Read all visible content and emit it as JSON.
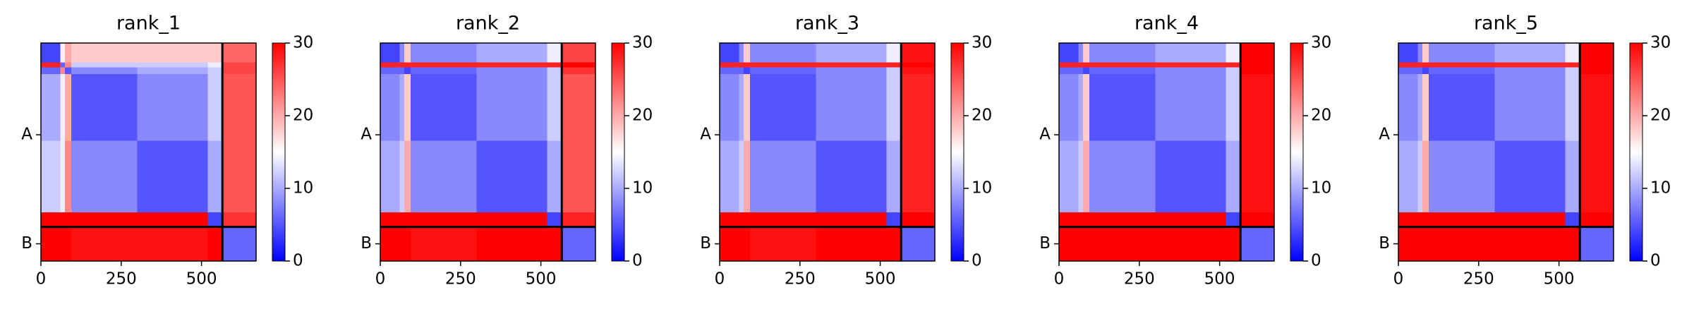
{
  "chart_data": [
    {
      "type": "heatmap",
      "title": "rank_1",
      "colormap": "bwr",
      "x_edges": [
        0,
        60,
        75,
        95,
        300,
        520,
        565,
        670
      ],
      "y_edges": [
        0,
        60,
        75,
        95,
        300,
        520,
        565,
        670
      ],
      "values": [
        [
          4,
          16,
          20,
          18,
          18,
          18,
          24
        ],
        [
          28,
          6,
          22,
          12,
          12,
          14,
          26
        ],
        [
          6,
          22,
          5,
          8,
          10,
          12,
          26
        ],
        [
          10,
          14,
          20,
          5,
          8,
          12,
          25
        ],
        [
          12,
          14,
          22,
          8,
          5,
          10,
          25
        ],
        [
          30,
          30,
          30,
          30,
          30,
          4,
          27
        ],
        [
          30,
          30,
          30,
          29,
          29,
          30,
          6
        ]
      ],
      "xlim": [
        0,
        670
      ],
      "xticks": [
        0,
        250,
        500
      ],
      "ylim": [
        0,
        670
      ],
      "yticks": [
        {
          "value": 282,
          "label": "A"
        },
        {
          "value": 617,
          "label": "B"
        }
      ],
      "chain_breaks": [
        565
      ],
      "clim": [
        0,
        30
      ],
      "cticks": [
        0,
        10,
        20,
        30
      ]
    },
    {
      "type": "heatmap",
      "title": "rank_2",
      "colormap": "bwr",
      "x_edges": [
        0,
        60,
        75,
        95,
        300,
        520,
        565,
        670
      ],
      "y_edges": [
        0,
        60,
        75,
        95,
        300,
        520,
        565,
        670
      ],
      "values": [
        [
          4,
          8,
          18,
          8,
          10,
          14,
          26
        ],
        [
          28,
          28,
          28,
          28,
          28,
          28,
          30
        ],
        [
          6,
          6,
          4,
          6,
          8,
          12,
          27
        ],
        [
          8,
          10,
          18,
          5,
          8,
          12,
          25
        ],
        [
          10,
          12,
          20,
          8,
          5,
          10,
          25
        ],
        [
          30,
          30,
          30,
          30,
          30,
          4,
          28
        ],
        [
          30,
          30,
          30,
          29,
          30,
          30,
          6
        ]
      ],
      "xlim": [
        0,
        670
      ],
      "xticks": [
        0,
        250,
        500
      ],
      "ylim": [
        0,
        670
      ],
      "yticks": [
        {
          "value": 282,
          "label": "A"
        },
        {
          "value": 617,
          "label": "B"
        }
      ],
      "chain_breaks": [
        565
      ],
      "clim": [
        0,
        30
      ],
      "cticks": [
        0,
        10,
        20,
        30
      ]
    },
    {
      "type": "heatmap",
      "title": "rank_3",
      "colormap": "bwr",
      "x_edges": [
        0,
        60,
        75,
        95,
        300,
        520,
        565,
        670
      ],
      "y_edges": [
        0,
        60,
        75,
        95,
        300,
        520,
        565,
        670
      ],
      "values": [
        [
          4,
          8,
          18,
          8,
          10,
          14,
          29
        ],
        [
          28,
          28,
          28,
          28,
          28,
          28,
          30
        ],
        [
          6,
          6,
          4,
          6,
          8,
          12,
          29
        ],
        [
          8,
          10,
          18,
          5,
          8,
          12,
          28
        ],
        [
          10,
          12,
          20,
          8,
          5,
          10,
          28
        ],
        [
          30,
          30,
          30,
          30,
          30,
          4,
          30
        ],
        [
          30,
          30,
          30,
          29,
          30,
          30,
          6
        ]
      ],
      "xlim": [
        0,
        670
      ],
      "xticks": [
        0,
        250,
        500
      ],
      "ylim": [
        0,
        670
      ],
      "yticks": [
        {
          "value": 282,
          "label": "A"
        },
        {
          "value": 617,
          "label": "B"
        }
      ],
      "chain_breaks": [
        565
      ],
      "clim": [
        0,
        30
      ],
      "cticks": [
        0,
        10,
        20,
        30
      ]
    },
    {
      "type": "heatmap",
      "title": "rank_4",
      "colormap": "bwr",
      "x_edges": [
        0,
        60,
        75,
        95,
        300,
        520,
        565,
        670
      ],
      "y_edges": [
        0,
        60,
        75,
        95,
        300,
        520,
        565,
        670
      ],
      "values": [
        [
          4,
          8,
          18,
          8,
          10,
          14,
          30
        ],
        [
          28,
          28,
          28,
          28,
          28,
          28,
          30
        ],
        [
          6,
          6,
          4,
          6,
          8,
          12,
          30
        ],
        [
          8,
          10,
          18,
          5,
          8,
          12,
          29
        ],
        [
          10,
          12,
          20,
          8,
          5,
          10,
          29
        ],
        [
          30,
          30,
          30,
          30,
          30,
          4,
          30
        ],
        [
          30,
          30,
          30,
          30,
          30,
          30,
          6
        ]
      ],
      "xlim": [
        0,
        670
      ],
      "xticks": [
        0,
        250,
        500
      ],
      "ylim": [
        0,
        670
      ],
      "yticks": [
        {
          "value": 282,
          "label": "A"
        },
        {
          "value": 617,
          "label": "B"
        }
      ],
      "chain_breaks": [
        565
      ],
      "clim": [
        0,
        30
      ],
      "cticks": [
        0,
        10,
        20,
        30
      ]
    },
    {
      "type": "heatmap",
      "title": "rank_5",
      "colormap": "bwr",
      "x_edges": [
        0,
        60,
        75,
        95,
        300,
        520,
        565,
        670
      ],
      "y_edges": [
        0,
        60,
        75,
        95,
        300,
        520,
        565,
        670
      ],
      "values": [
        [
          4,
          8,
          18,
          8,
          10,
          14,
          30
        ],
        [
          28,
          28,
          28,
          28,
          28,
          28,
          30
        ],
        [
          6,
          6,
          4,
          6,
          8,
          12,
          30
        ],
        [
          8,
          10,
          18,
          5,
          8,
          12,
          29
        ],
        [
          10,
          12,
          20,
          8,
          5,
          10,
          29
        ],
        [
          30,
          30,
          30,
          30,
          30,
          4,
          30
        ],
        [
          30,
          30,
          30,
          30,
          30,
          30,
          6
        ]
      ],
      "xlim": [
        0,
        670
      ],
      "xticks": [
        0,
        250,
        500
      ],
      "ylim": [
        0,
        670
      ],
      "yticks": [
        {
          "value": 282,
          "label": "A"
        },
        {
          "value": 617,
          "label": "B"
        }
      ],
      "chain_breaks": [
        565
      ],
      "clim": [
        0,
        30
      ],
      "cticks": [
        0,
        10,
        20,
        30
      ]
    }
  ]
}
